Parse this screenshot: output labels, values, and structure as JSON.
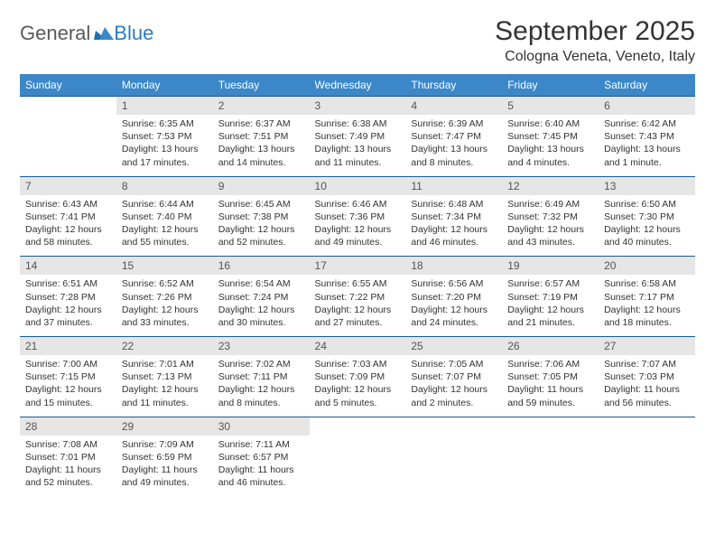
{
  "brand": {
    "word1": "General",
    "word2": "Blue"
  },
  "title": "September 2025",
  "location": "Cologna Veneta, Veneto, Italy",
  "colors": {
    "header_bg": "#3b87c8",
    "header_text": "#ffffff",
    "border": "#1b5a8f",
    "daynum_bg": "#e6e6e6",
    "text": "#333333",
    "logo_gray": "#5a5a5a",
    "logo_blue": "#2f7bbf"
  },
  "weekdays": [
    "Sunday",
    "Monday",
    "Tuesday",
    "Wednesday",
    "Thursday",
    "Friday",
    "Saturday"
  ],
  "weeks": [
    {
      "nums": [
        "",
        "1",
        "2",
        "3",
        "4",
        "5",
        "6"
      ],
      "cells": [
        null,
        {
          "sunrise": "Sunrise: 6:35 AM",
          "sunset": "Sunset: 7:53 PM",
          "daylight1": "Daylight: 13 hours",
          "daylight2": "and 17 minutes."
        },
        {
          "sunrise": "Sunrise: 6:37 AM",
          "sunset": "Sunset: 7:51 PM",
          "daylight1": "Daylight: 13 hours",
          "daylight2": "and 14 minutes."
        },
        {
          "sunrise": "Sunrise: 6:38 AM",
          "sunset": "Sunset: 7:49 PM",
          "daylight1": "Daylight: 13 hours",
          "daylight2": "and 11 minutes."
        },
        {
          "sunrise": "Sunrise: 6:39 AM",
          "sunset": "Sunset: 7:47 PM",
          "daylight1": "Daylight: 13 hours",
          "daylight2": "and 8 minutes."
        },
        {
          "sunrise": "Sunrise: 6:40 AM",
          "sunset": "Sunset: 7:45 PM",
          "daylight1": "Daylight: 13 hours",
          "daylight2": "and 4 minutes."
        },
        {
          "sunrise": "Sunrise: 6:42 AM",
          "sunset": "Sunset: 7:43 PM",
          "daylight1": "Daylight: 13 hours",
          "daylight2": "and 1 minute."
        }
      ]
    },
    {
      "nums": [
        "7",
        "8",
        "9",
        "10",
        "11",
        "12",
        "13"
      ],
      "cells": [
        {
          "sunrise": "Sunrise: 6:43 AM",
          "sunset": "Sunset: 7:41 PM",
          "daylight1": "Daylight: 12 hours",
          "daylight2": "and 58 minutes."
        },
        {
          "sunrise": "Sunrise: 6:44 AM",
          "sunset": "Sunset: 7:40 PM",
          "daylight1": "Daylight: 12 hours",
          "daylight2": "and 55 minutes."
        },
        {
          "sunrise": "Sunrise: 6:45 AM",
          "sunset": "Sunset: 7:38 PM",
          "daylight1": "Daylight: 12 hours",
          "daylight2": "and 52 minutes."
        },
        {
          "sunrise": "Sunrise: 6:46 AM",
          "sunset": "Sunset: 7:36 PM",
          "daylight1": "Daylight: 12 hours",
          "daylight2": "and 49 minutes."
        },
        {
          "sunrise": "Sunrise: 6:48 AM",
          "sunset": "Sunset: 7:34 PM",
          "daylight1": "Daylight: 12 hours",
          "daylight2": "and 46 minutes."
        },
        {
          "sunrise": "Sunrise: 6:49 AM",
          "sunset": "Sunset: 7:32 PM",
          "daylight1": "Daylight: 12 hours",
          "daylight2": "and 43 minutes."
        },
        {
          "sunrise": "Sunrise: 6:50 AM",
          "sunset": "Sunset: 7:30 PM",
          "daylight1": "Daylight: 12 hours",
          "daylight2": "and 40 minutes."
        }
      ]
    },
    {
      "nums": [
        "14",
        "15",
        "16",
        "17",
        "18",
        "19",
        "20"
      ],
      "cells": [
        {
          "sunrise": "Sunrise: 6:51 AM",
          "sunset": "Sunset: 7:28 PM",
          "daylight1": "Daylight: 12 hours",
          "daylight2": "and 37 minutes."
        },
        {
          "sunrise": "Sunrise: 6:52 AM",
          "sunset": "Sunset: 7:26 PM",
          "daylight1": "Daylight: 12 hours",
          "daylight2": "and 33 minutes."
        },
        {
          "sunrise": "Sunrise: 6:54 AM",
          "sunset": "Sunset: 7:24 PM",
          "daylight1": "Daylight: 12 hours",
          "daylight2": "and 30 minutes."
        },
        {
          "sunrise": "Sunrise: 6:55 AM",
          "sunset": "Sunset: 7:22 PM",
          "daylight1": "Daylight: 12 hours",
          "daylight2": "and 27 minutes."
        },
        {
          "sunrise": "Sunrise: 6:56 AM",
          "sunset": "Sunset: 7:20 PM",
          "daylight1": "Daylight: 12 hours",
          "daylight2": "and 24 minutes."
        },
        {
          "sunrise": "Sunrise: 6:57 AM",
          "sunset": "Sunset: 7:19 PM",
          "daylight1": "Daylight: 12 hours",
          "daylight2": "and 21 minutes."
        },
        {
          "sunrise": "Sunrise: 6:58 AM",
          "sunset": "Sunset: 7:17 PM",
          "daylight1": "Daylight: 12 hours",
          "daylight2": "and 18 minutes."
        }
      ]
    },
    {
      "nums": [
        "21",
        "22",
        "23",
        "24",
        "25",
        "26",
        "27"
      ],
      "cells": [
        {
          "sunrise": "Sunrise: 7:00 AM",
          "sunset": "Sunset: 7:15 PM",
          "daylight1": "Daylight: 12 hours",
          "daylight2": "and 15 minutes."
        },
        {
          "sunrise": "Sunrise: 7:01 AM",
          "sunset": "Sunset: 7:13 PM",
          "daylight1": "Daylight: 12 hours",
          "daylight2": "and 11 minutes."
        },
        {
          "sunrise": "Sunrise: 7:02 AM",
          "sunset": "Sunset: 7:11 PM",
          "daylight1": "Daylight: 12 hours",
          "daylight2": "and 8 minutes."
        },
        {
          "sunrise": "Sunrise: 7:03 AM",
          "sunset": "Sunset: 7:09 PM",
          "daylight1": "Daylight: 12 hours",
          "daylight2": "and 5 minutes."
        },
        {
          "sunrise": "Sunrise: 7:05 AM",
          "sunset": "Sunset: 7:07 PM",
          "daylight1": "Daylight: 12 hours",
          "daylight2": "and 2 minutes."
        },
        {
          "sunrise": "Sunrise: 7:06 AM",
          "sunset": "Sunset: 7:05 PM",
          "daylight1": "Daylight: 11 hours",
          "daylight2": "and 59 minutes."
        },
        {
          "sunrise": "Sunrise: 7:07 AM",
          "sunset": "Sunset: 7:03 PM",
          "daylight1": "Daylight: 11 hours",
          "daylight2": "and 56 minutes."
        }
      ]
    },
    {
      "nums": [
        "28",
        "29",
        "30",
        "",
        "",
        "",
        ""
      ],
      "cells": [
        {
          "sunrise": "Sunrise: 7:08 AM",
          "sunset": "Sunset: 7:01 PM",
          "daylight1": "Daylight: 11 hours",
          "daylight2": "and 52 minutes."
        },
        {
          "sunrise": "Sunrise: 7:09 AM",
          "sunset": "Sunset: 6:59 PM",
          "daylight1": "Daylight: 11 hours",
          "daylight2": "and 49 minutes."
        },
        {
          "sunrise": "Sunrise: 7:11 AM",
          "sunset": "Sunset: 6:57 PM",
          "daylight1": "Daylight: 11 hours",
          "daylight2": "and 46 minutes."
        },
        null,
        null,
        null,
        null
      ]
    }
  ]
}
